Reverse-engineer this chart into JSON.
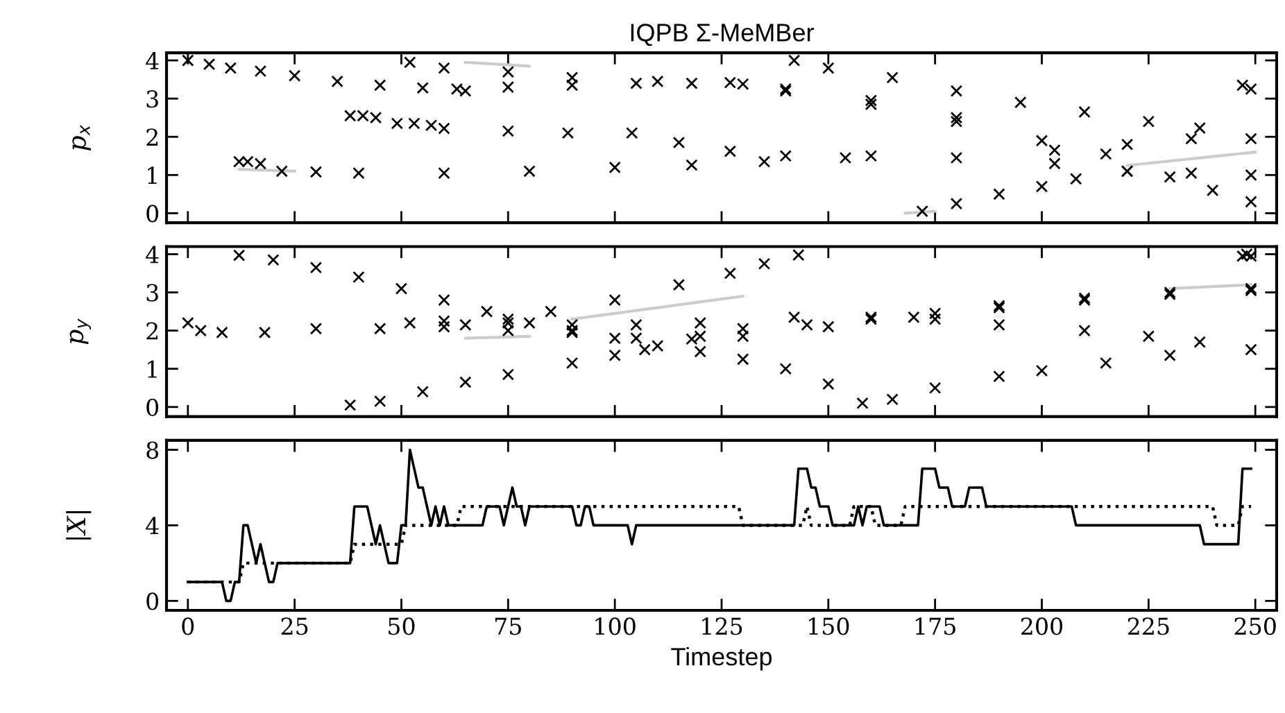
{
  "chart_data": [
    {
      "type": "scatter",
      "title": "IQPB Σ-MeMBer",
      "ylabel": "p$_{x}$",
      "marker": "cross",
      "tick_labels": "y",
      "xlim": [
        -5,
        255
      ],
      "xticks": [
        0,
        25,
        50,
        75,
        100,
        125,
        150,
        175,
        200,
        225,
        250
      ],
      "ylim": [
        -0.25,
        4.2
      ],
      "yticks": [
        0,
        1,
        2,
        3,
        4
      ],
      "series": [
        {
          "type": "line",
          "marker": "none",
          "color": "#cccccc",
          "x": [
            12,
            25
          ],
          "values": [
            1.15,
            1.1
          ]
        },
        {
          "type": "line",
          "marker": "none",
          "color": "#cccccc",
          "x": [
            65,
            80
          ],
          "values": [
            3.95,
            3.85
          ]
        },
        {
          "type": "line",
          "marker": "none",
          "color": "#cccccc",
          "x": [
            168,
            175
          ],
          "values": [
            0.0,
            0.05
          ]
        },
        {
          "type": "line",
          "marker": "none",
          "color": "#cccccc",
          "x": [
            220,
            250
          ],
          "values": [
            1.25,
            1.6
          ]
        },
        {
          "color": "#000000",
          "x": [
            0,
            5,
            10,
            17,
            25,
            35,
            45,
            55,
            63
          ],
          "values": [
            4.0,
            3.9,
            3.8,
            3.72,
            3.6,
            3.45,
            3.35,
            3.28,
            3.25
          ]
        },
        {
          "color": "#000000",
          "x": [
            65,
            75,
            90,
            105,
            118,
            130,
            140,
            160,
            180,
            200,
            215,
            230,
            240,
            249
          ],
          "values": [
            3.2,
            3.3,
            3.35,
            3.4,
            3.4,
            3.38,
            3.2,
            2.85,
            2.4,
            1.9,
            1.55,
            0.95,
            0.6,
            0.3
          ]
        },
        {
          "color": "#000000",
          "x": [
            52,
            60,
            75,
            90,
            110,
            127,
            140,
            160,
            180,
            203,
            220,
            235,
            249
          ],
          "values": [
            3.95,
            3.8,
            3.7,
            3.55,
            3.45,
            3.42,
            3.25,
            2.95,
            2.5,
            1.65,
            1.8,
            1.95,
            1.95
          ]
        },
        {
          "color": "#000000",
          "x": [
            142,
            150,
            165,
            180,
            195,
            210,
            225,
            237
          ],
          "values": [
            4.0,
            3.8,
            3.55,
            3.2,
            2.9,
            2.65,
            2.4,
            2.23
          ]
        },
        {
          "color": "#000000",
          "x": [
            38,
            41,
            44,
            49,
            53,
            57,
            60,
            75,
            89,
            104,
            115,
            127,
            140,
            160,
            180,
            203,
            220,
            235,
            249
          ],
          "values": [
            2.55,
            2.55,
            2.5,
            2.35,
            2.35,
            2.3,
            2.22,
            2.15,
            2.1,
            2.1,
            1.85,
            1.62,
            1.5,
            1.5,
            1.45,
            1.3,
            1.1,
            1.05,
            1.0
          ]
        },
        {
          "color": "#000000",
          "x": [
            12,
            14,
            17,
            22,
            30,
            40,
            60,
            80,
            100,
            118,
            135,
            154
          ],
          "values": [
            1.35,
            1.35,
            1.3,
            1.1,
            1.08,
            1.05,
            1.05,
            1.1,
            1.2,
            1.26,
            1.35,
            1.45
          ]
        },
        {
          "color": "#000000",
          "x": [
            172,
            180,
            190,
            200,
            208,
            220
          ],
          "values": [
            0.05,
            0.25,
            0.5,
            0.7,
            0.9,
            1.1
          ]
        },
        {
          "color": "#000000",
          "x": [
            247,
            249
          ],
          "values": [
            3.35,
            3.25
          ]
        }
      ]
    },
    {
      "type": "scatter",
      "ylabel": "p$_{y}$",
      "marker": "cross",
      "tick_labels": "y",
      "xlim": [
        -5,
        255
      ],
      "xticks": [
        0,
        25,
        50,
        75,
        100,
        125,
        150,
        175,
        200,
        225,
        250
      ],
      "ylim": [
        -0.25,
        4.2
      ],
      "yticks": [
        0,
        1,
        2,
        3,
        4
      ],
      "series": [
        {
          "type": "line",
          "marker": "none",
          "color": "#cccccc",
          "x": [
            90,
            130
          ],
          "values": [
            2.3,
            2.9
          ]
        },
        {
          "type": "line",
          "marker": "none",
          "color": "#cccccc",
          "x": [
            65,
            80
          ],
          "values": [
            1.8,
            1.85
          ]
        },
        {
          "type": "line",
          "marker": "none",
          "color": "#cccccc",
          "x": [
            230,
            249
          ],
          "values": [
            3.1,
            3.2
          ]
        },
        {
          "color": "#000000",
          "x": [
            12,
            20,
            30,
            40,
            50,
            60,
            70,
            80,
            90,
            100,
            110,
            120,
            130,
            140,
            150,
            158,
            165,
            175,
            190,
            200,
            215,
            230,
            249
          ],
          "values": [
            3.97,
            3.85,
            3.65,
            3.4,
            3.1,
            2.8,
            2.5,
            2.2,
            2.0,
            1.8,
            1.6,
            1.45,
            1.25,
            1.0,
            0.6,
            0.1,
            0.2,
            0.5,
            0.8,
            0.95,
            1.15,
            1.35,
            1.5
          ]
        },
        {
          "color": "#000000",
          "x": [
            0,
            3,
            8,
            18,
            30,
            45,
            60,
            75,
            90,
            105,
            118,
            130,
            150,
            170,
            190,
            210,
            230,
            249
          ],
          "values": [
            2.2,
            2.0,
            1.95,
            1.95,
            2.05,
            2.05,
            2.1,
            2.0,
            1.95,
            1.8,
            1.78,
            1.85,
            2.1,
            2.35,
            2.6,
            2.8,
            2.95,
            3.05
          ]
        },
        {
          "color": "#000000",
          "x": [
            38,
            45,
            55,
            65,
            75,
            90,
            100,
            107,
            120,
            130,
            145,
            160,
            175,
            190,
            210,
            230,
            249
          ],
          "values": [
            0.05,
            0.15,
            0.4,
            0.65,
            0.85,
            1.15,
            1.35,
            1.5,
            1.85,
            2.05,
            2.15,
            2.3,
            2.45,
            2.65,
            2.85,
            3.0,
            3.1
          ]
        },
        {
          "color": "#000000",
          "x": [
            65,
            75,
            85,
            100,
            115,
            127,
            135,
            143
          ],
          "values": [
            2.15,
            2.3,
            2.5,
            2.8,
            3.2,
            3.5,
            3.75,
            3.98
          ]
        },
        {
          "color": "#000000",
          "x": [
            52,
            60,
            75,
            90,
            105,
            120,
            142,
            160,
            175,
            190,
            210,
            225,
            237
          ],
          "values": [
            2.2,
            2.25,
            2.2,
            2.15,
            2.15,
            2.2,
            2.35,
            2.35,
            2.3,
            2.15,
            2.0,
            1.85,
            1.7
          ]
        },
        {
          "color": "#000000",
          "x": [
            247,
            248,
            249
          ],
          "values": [
            3.95,
            4.0,
            3.95
          ]
        }
      ]
    },
    {
      "type": "line",
      "ylabel": "|X|",
      "xlabel": "Timestep",
      "xlim": [
        -5,
        255
      ],
      "xticks": [
        0,
        25,
        50,
        75,
        100,
        125,
        150,
        175,
        200,
        225,
        250
      ],
      "ylim": [
        -0.5,
        8.5
      ],
      "yticks": [
        0,
        4,
        8
      ],
      "series": [
        {
          "color": "#000000",
          "line_style": "dotted",
          "x": [
            0,
            12,
            13,
            38,
            39,
            50,
            51,
            63,
            64,
            129,
            130,
            144,
            145,
            146,
            155,
            156,
            160,
            161,
            167,
            168,
            240,
            241,
            246,
            247,
            249
          ],
          "values": [
            1,
            1,
            2,
            2,
            3,
            3,
            4,
            4,
            5,
            5,
            4,
            4,
            5,
            4,
            4,
            5,
            5,
            4,
            4,
            5,
            5,
            4,
            4,
            5,
            5
          ]
        },
        {
          "color": "#000000",
          "line_style": "solid",
          "x": [
            0,
            8,
            9,
            10,
            11,
            12,
            13,
            14,
            15,
            16,
            17,
            18,
            19,
            20,
            21,
            38,
            39,
            42,
            43,
            44,
            45,
            46,
            47,
            49,
            50,
            51,
            52,
            53,
            54,
            55,
            56,
            57,
            58,
            59,
            60,
            61,
            69,
            70,
            73,
            74,
            75,
            76,
            77,
            78,
            79,
            80,
            90,
            91,
            92,
            93,
            94,
            95,
            103,
            104,
            105,
            142,
            143,
            145,
            146,
            147,
            148,
            150,
            151,
            156,
            157,
            158,
            159,
            162,
            163,
            171,
            172,
            175,
            176,
            178,
            179,
            182,
            183,
            186,
            187,
            207,
            208,
            237,
            238,
            246,
            247,
            249
          ],
          "values": [
            1,
            1,
            0,
            0,
            1,
            1,
            4,
            4,
            3,
            2,
            3,
            2,
            1,
            1,
            2,
            2,
            5,
            5,
            4,
            3,
            4,
            3,
            2,
            2,
            4,
            4,
            8,
            7,
            6,
            6,
            5,
            4,
            5,
            4,
            5,
            4,
            4,
            5,
            5,
            4,
            5,
            6,
            5,
            5,
            4,
            5,
            5,
            4,
            4,
            5,
            5,
            4,
            4,
            3,
            4,
            4,
            7,
            7,
            6,
            6,
            5,
            5,
            4,
            4,
            5,
            4,
            5,
            5,
            4,
            4,
            7,
            7,
            6,
            6,
            5,
            5,
            6,
            6,
            5,
            5,
            4,
            4,
            3,
            3,
            7,
            7
          ]
        }
      ]
    }
  ]
}
